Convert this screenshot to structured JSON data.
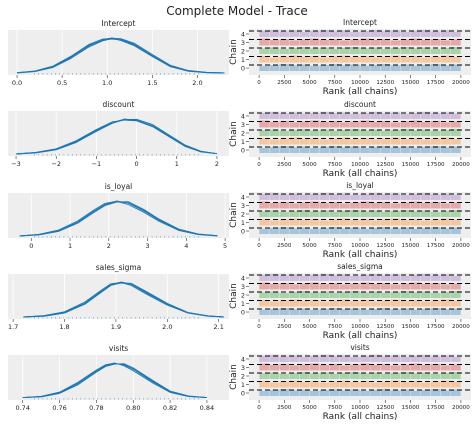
{
  "figure": {
    "title": "Complete Model - Trace"
  },
  "colors": {
    "kde_line": "#1f77b4",
    "panel_bg": "#eeeeee",
    "chain_palette": [
      "#1f77b4",
      "#ff7f0e",
      "#2ca02c",
      "#d62728",
      "#9467bd"
    ],
    "dashed_line": "#000000"
  },
  "chart_data": [
    {
      "type": "line",
      "title": "Intercept",
      "xticks": [
        "0.0",
        "0.5",
        "1.0",
        "1.5",
        "2.0"
      ],
      "xlim": [
        -0.1,
        2.35
      ],
      "x": [
        0.0,
        0.2,
        0.4,
        0.6,
        0.8,
        0.95,
        1.05,
        1.15,
        1.3,
        1.5,
        1.7,
        1.9,
        2.1,
        2.3
      ],
      "series": [
        {
          "values": [
            0.01,
            0.05,
            0.18,
            0.45,
            0.78,
            0.95,
            1.0,
            0.97,
            0.82,
            0.5,
            0.2,
            0.06,
            0.02,
            0.0
          ]
        },
        {
          "values": [
            0.01,
            0.06,
            0.2,
            0.48,
            0.82,
            0.97,
            0.99,
            0.93,
            0.78,
            0.47,
            0.18,
            0.05,
            0.01,
            0.0
          ]
        },
        {
          "values": [
            0.0,
            0.04,
            0.16,
            0.42,
            0.75,
            0.92,
            0.98,
            0.98,
            0.85,
            0.53,
            0.22,
            0.07,
            0.02,
            0.0
          ]
        },
        {
          "values": [
            0.01,
            0.05,
            0.19,
            0.46,
            0.8,
            0.94,
            0.97,
            0.95,
            0.8,
            0.49,
            0.19,
            0.06,
            0.01,
            0.0
          ]
        }
      ]
    },
    {
      "type": "line",
      "title": "discount",
      "xticks": [
        "−3",
        "−2",
        "−1",
        "0",
        "1",
        "2"
      ],
      "xlim": [
        -3.2,
        2.3
      ],
      "x": [
        -3.0,
        -2.5,
        -2.0,
        -1.5,
        -1.0,
        -0.6,
        -0.3,
        0.0,
        0.4,
        0.8,
        1.2,
        1.6,
        2.0
      ],
      "series": [
        {
          "values": [
            0.0,
            0.04,
            0.14,
            0.36,
            0.68,
            0.9,
            0.99,
            0.97,
            0.8,
            0.52,
            0.24,
            0.07,
            0.01
          ]
        },
        {
          "values": [
            0.0,
            0.03,
            0.12,
            0.33,
            0.65,
            0.88,
            0.98,
            0.99,
            0.84,
            0.55,
            0.26,
            0.08,
            0.01
          ]
        },
        {
          "values": [
            0.0,
            0.05,
            0.15,
            0.38,
            0.7,
            0.92,
            0.97,
            0.95,
            0.78,
            0.5,
            0.22,
            0.06,
            0.01
          ]
        },
        {
          "values": [
            0.0,
            0.04,
            0.13,
            0.35,
            0.67,
            0.89,
            1.0,
            0.96,
            0.81,
            0.53,
            0.25,
            0.07,
            0.01
          ]
        }
      ]
    },
    {
      "type": "line",
      "title": "is_loyal",
      "xticks": [
        "0",
        "1",
        "2",
        "3",
        "4",
        "5"
      ],
      "xlim": [
        -0.6,
        5.1
      ],
      "x": [
        -0.3,
        0.2,
        0.7,
        1.2,
        1.6,
        1.9,
        2.2,
        2.5,
        2.9,
        3.3,
        3.8,
        4.3,
        4.8
      ],
      "series": [
        {
          "values": [
            0.0,
            0.04,
            0.15,
            0.4,
            0.7,
            0.9,
            1.0,
            0.94,
            0.72,
            0.45,
            0.18,
            0.05,
            0.01
          ]
        },
        {
          "values": [
            0.0,
            0.03,
            0.13,
            0.37,
            0.66,
            0.87,
            0.97,
            0.98,
            0.76,
            0.48,
            0.2,
            0.06,
            0.01
          ]
        },
        {
          "values": [
            0.0,
            0.05,
            0.17,
            0.43,
            0.73,
            0.93,
            0.99,
            0.9,
            0.68,
            0.42,
            0.16,
            0.04,
            0.0
          ]
        },
        {
          "values": [
            0.0,
            0.04,
            0.14,
            0.39,
            0.69,
            0.89,
            0.98,
            0.95,
            0.74,
            0.46,
            0.19,
            0.05,
            0.01
          ]
        }
      ]
    },
    {
      "type": "line",
      "title": "sales_sigma",
      "xticks": [
        "1.7",
        "1.8",
        "1.9",
        "2.0",
        "2.1"
      ],
      "xlim": [
        1.69,
        2.12
      ],
      "x": [
        1.72,
        1.76,
        1.8,
        1.84,
        1.87,
        1.89,
        1.91,
        1.93,
        1.96,
        2.0,
        2.04,
        2.08,
        2.11
      ],
      "series": [
        {
          "values": [
            0.0,
            0.03,
            0.13,
            0.4,
            0.72,
            0.92,
            1.0,
            0.93,
            0.68,
            0.36,
            0.12,
            0.03,
            0.0
          ]
        },
        {
          "values": [
            0.0,
            0.02,
            0.11,
            0.37,
            0.69,
            0.9,
            0.98,
            0.96,
            0.72,
            0.39,
            0.13,
            0.03,
            0.0
          ]
        },
        {
          "values": [
            0.0,
            0.04,
            0.15,
            0.43,
            0.75,
            0.95,
            0.99,
            0.9,
            0.65,
            0.34,
            0.11,
            0.02,
            0.0
          ]
        },
        {
          "values": [
            0.0,
            0.03,
            0.12,
            0.39,
            0.71,
            0.91,
            0.97,
            0.94,
            0.7,
            0.37,
            0.12,
            0.03,
            0.0
          ]
        }
      ]
    },
    {
      "type": "line",
      "title": "visits",
      "xticks": [
        "0.74",
        "0.76",
        "0.78",
        "0.80",
        "0.82",
        "0.84"
      ],
      "xlim": [
        0.732,
        0.852
      ],
      "x": [
        0.74,
        0.75,
        0.76,
        0.77,
        0.78,
        0.785,
        0.79,
        0.795,
        0.8,
        0.81,
        0.82,
        0.83,
        0.84
      ],
      "series": [
        {
          "values": [
            0.01,
            0.04,
            0.15,
            0.42,
            0.78,
            0.93,
            0.99,
            0.95,
            0.82,
            0.48,
            0.18,
            0.05,
            0.01
          ]
        },
        {
          "values": [
            0.01,
            0.03,
            0.13,
            0.38,
            0.74,
            0.9,
            0.97,
            0.98,
            0.86,
            0.52,
            0.2,
            0.06,
            0.01
          ]
        },
        {
          "values": [
            0.01,
            0.05,
            0.17,
            0.45,
            0.8,
            0.95,
            1.0,
            0.92,
            0.78,
            0.45,
            0.16,
            0.04,
            0.01
          ]
        },
        {
          "values": [
            0.01,
            0.04,
            0.14,
            0.41,
            0.77,
            0.92,
            0.98,
            0.96,
            0.83,
            0.5,
            0.19,
            0.05,
            0.01
          ]
        }
      ]
    },
    {
      "type": "line",
      "title": "Intercept",
      "xlabel": "Rank (all chains)",
      "ylabel": "Chain",
      "xticks": [
        "0",
        "2500",
        "5000",
        "7500",
        "10000",
        "12500",
        "15000",
        "17500",
        "20000"
      ],
      "yticks": [
        "0",
        "1",
        "2",
        "3",
        "4"
      ],
      "xlim": [
        -1000,
        21000
      ],
      "chains": [
        0,
        1,
        2,
        3,
        4
      ]
    },
    {
      "type": "line",
      "title": "discount",
      "xlabel": "Rank (all chains)",
      "ylabel": "Chain",
      "xticks": [
        "0",
        "2500",
        "5000",
        "7500",
        "10000",
        "12500",
        "15000",
        "17500",
        "20000"
      ],
      "yticks": [
        "0",
        "1",
        "2",
        "3",
        "4"
      ],
      "xlim": [
        -1000,
        21000
      ],
      "chains": [
        0,
        1,
        2,
        3,
        4
      ]
    },
    {
      "type": "line",
      "title": "is_loyal",
      "xlabel": "Rank (all chains)",
      "ylabel": "Chain",
      "xticks": [
        "0",
        "2500",
        "5000",
        "7500",
        "10000",
        "12500",
        "15000",
        "17500",
        "20000"
      ],
      "yticks": [
        "0",
        "1",
        "2",
        "3",
        "4"
      ],
      "xlim": [
        -1000,
        21000
      ],
      "chains": [
        0,
        1,
        2,
        3,
        4
      ]
    },
    {
      "type": "line",
      "title": "sales_sigma",
      "xlabel": "Rank (all chains)",
      "ylabel": "Chain",
      "xticks": [
        "0",
        "2500",
        "5000",
        "7500",
        "10000",
        "12500",
        "15000",
        "17500",
        "20000"
      ],
      "yticks": [
        "0",
        "1",
        "2",
        "3",
        "4"
      ],
      "xlim": [
        -1000,
        21000
      ],
      "chains": [
        0,
        1,
        2,
        3,
        4
      ]
    },
    {
      "type": "line",
      "title": "visits",
      "xlabel": "Rank (all chains)",
      "ylabel": "Chain",
      "xticks": [
        "0",
        "2500",
        "5000",
        "7500",
        "10000",
        "12500",
        "15000",
        "17500",
        "20000"
      ],
      "yticks": [
        "0",
        "1",
        "2",
        "3",
        "4"
      ],
      "xlim": [
        -1000,
        21000
      ],
      "chains": [
        0,
        1,
        2,
        3,
        4
      ]
    }
  ]
}
